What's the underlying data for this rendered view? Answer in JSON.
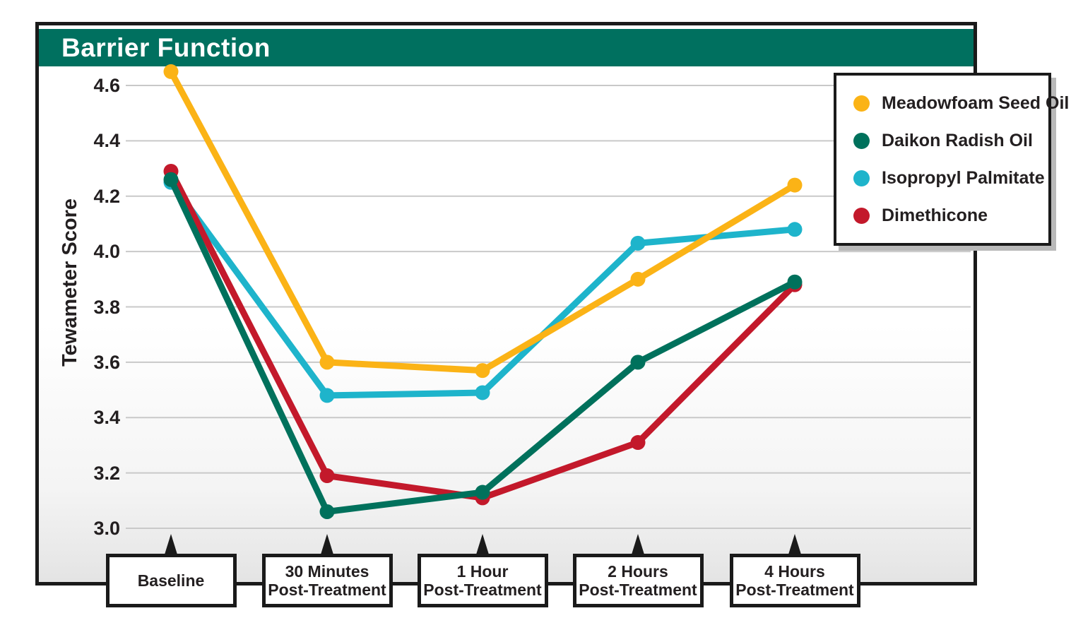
{
  "header": {
    "title": "Barrier Function"
  },
  "colors": {
    "header_bg": "#00705F",
    "frame_border": "#1a1a1a",
    "gridline": "#c9c9c9",
    "text": "#231f20",
    "plot_gradient_bottom": "#e4e4e4",
    "legend_shadow": "#b9b9b9"
  },
  "chart_data": {
    "type": "line",
    "title": "Barrier Function",
    "xlabel": "",
    "ylabel": "Tewameter Score",
    "ylim": [
      3.0,
      4.6
    ],
    "ytick_labels": [
      "4.6",
      "4.4",
      "4.2",
      "4.0",
      "3.8",
      "3.6",
      "3.4",
      "3.2",
      "3.0"
    ],
    "grid": "horizontal",
    "legend_position": "top-right",
    "categories": [
      "Baseline",
      "30 Minutes Post-Treatment",
      "1 Hour Post-Treatment",
      "2 Hours Post-Treatment",
      "4 Hours Post-Treatment"
    ],
    "x_labels_lines": [
      [
        "Baseline",
        ""
      ],
      [
        "30 Minutes",
        "Post-Treatment"
      ],
      [
        "1 Hour",
        "Post-Treatment"
      ],
      [
        "2 Hours",
        "Post-Treatment"
      ],
      [
        "4 Hours",
        "Post-Treatment"
      ]
    ],
    "series": [
      {
        "name": "Meadowfoam Seed Oil",
        "color": "#FBB316",
        "values": [
          4.65,
          3.6,
          3.57,
          3.9,
          4.24
        ]
      },
      {
        "name": "Daikon Radish Oil",
        "color": "#00715C",
        "values": [
          4.26,
          3.06,
          3.13,
          3.6,
          3.89
        ]
      },
      {
        "name": "Isopropyl Palmitate",
        "color": "#1EB4CB",
        "values": [
          4.25,
          3.48,
          3.49,
          4.03,
          4.08
        ]
      },
      {
        "name": "Dimethicone",
        "color": "#C3192B",
        "values": [
          4.29,
          3.19,
          3.11,
          3.31,
          3.88
        ]
      }
    ]
  }
}
